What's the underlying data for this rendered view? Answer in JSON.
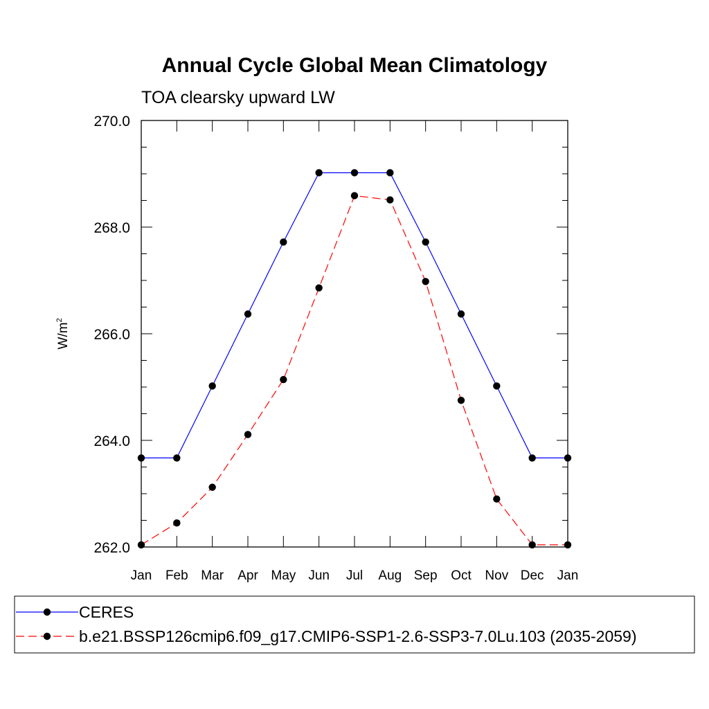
{
  "chart_data": {
    "type": "line",
    "title": "Annual Cycle Global Mean Climatology",
    "subtitle": "TOA clearsky upward LW",
    "ylabel": "W/m",
    "ylabel_superscript": "2",
    "xlabel": "",
    "categories": [
      "Jan",
      "Feb",
      "Mar",
      "Apr",
      "May",
      "Jun",
      "Jul",
      "Aug",
      "Sep",
      "Oct",
      "Nov",
      "Dec",
      "Jan"
    ],
    "ylim": [
      262.0,
      270.0
    ],
    "yticks": [
      "262.0",
      "264.0",
      "266.0",
      "268.0",
      "270.0"
    ],
    "yminor_step": 0.5,
    "grid": false,
    "legend_position": "bottom",
    "series": [
      {
        "name": "CERES",
        "color": "#0000ff",
        "dash": "solid",
        "marker": "circle",
        "values": [
          263.67,
          263.67,
          265.02,
          266.37,
          267.72,
          269.02,
          269.02,
          269.02,
          267.72,
          266.37,
          265.02,
          263.67,
          263.67
        ]
      },
      {
        "name": "b.e21.BSSP126cmip6.f09_g17.CMIP6-SSP1-2.6-SSP3-7.0Lu.103 (2035-2059)",
        "color": "#ff0000",
        "dash": "dashed",
        "marker": "circle",
        "values": [
          262.04,
          262.45,
          263.12,
          264.11,
          265.14,
          266.86,
          268.59,
          268.51,
          266.98,
          264.75,
          262.9,
          262.04,
          262.04
        ]
      }
    ]
  }
}
